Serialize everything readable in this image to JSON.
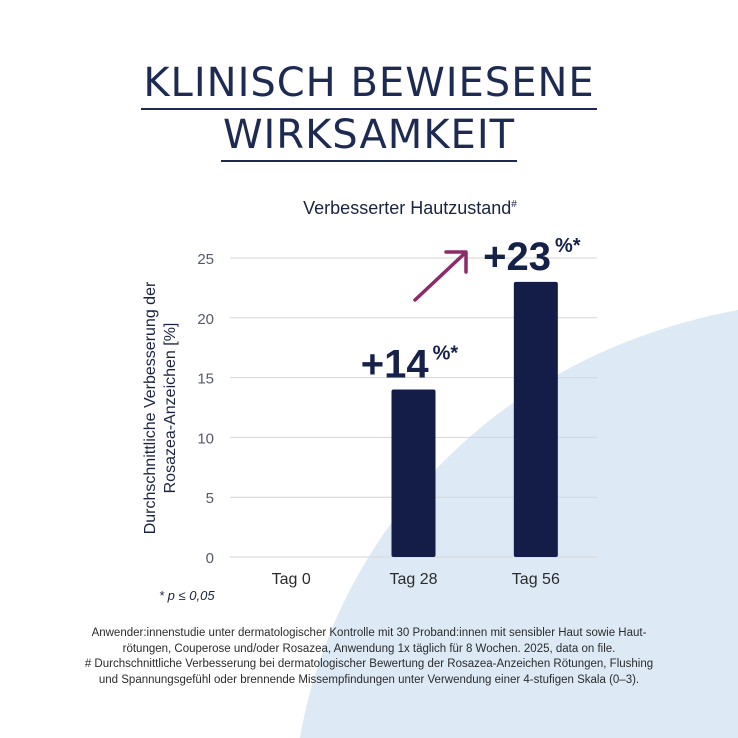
{
  "headline": {
    "line1": "KLINISCH BEWIESENE",
    "line2": "WIRKSAMKEIT"
  },
  "colors": {
    "navy": "#16214a",
    "bar": "#131d47",
    "arrow": "#8c2a6a",
    "blob": "#dde9f5",
    "grid": "#d6d6d6"
  },
  "chart_data": {
    "type": "bar",
    "title": "Verbesserter Hautzustand",
    "title_sup": "#",
    "ylabel_line1": "Durchschnittliche  Verbesserung der",
    "ylabel_line2": "Rosazea-Anzeichen [%]",
    "categories": [
      "Tag 0",
      "Tag 28",
      "Tag 56"
    ],
    "values": [
      0,
      14,
      23
    ],
    "ylim": [
      0,
      25
    ],
    "yticks": [
      0,
      5,
      10,
      15,
      20,
      25
    ],
    "grid": true,
    "annotations": [
      {
        "category": "Tag 28",
        "text": "+14",
        "suffix": "%*"
      },
      {
        "category": "Tag 56",
        "text": "+23",
        "suffix": "%*"
      }
    ]
  },
  "significance_note": "* p ≤ 0,05",
  "footer": {
    "line1": "Anwender:innenstudie unter dermatologischer Kontrolle mit 30 Proband:innen mit sensibler Haut sowie Haut-",
    "line2": "rötungen, Couperose und/oder Rosazea, Anwendung 1x täglich für 8 Wochen. 2025, data on file.",
    "line3": "# Durchschnittliche Verbesserung bei dermatologischer Bewertung der Rosazea-Anzeichen Rötungen, Flushing",
    "line4": "und Spannungsgefühl oder brennende Missempfindungen unter Verwendung einer 4-stufigen Skala (0–3)."
  }
}
